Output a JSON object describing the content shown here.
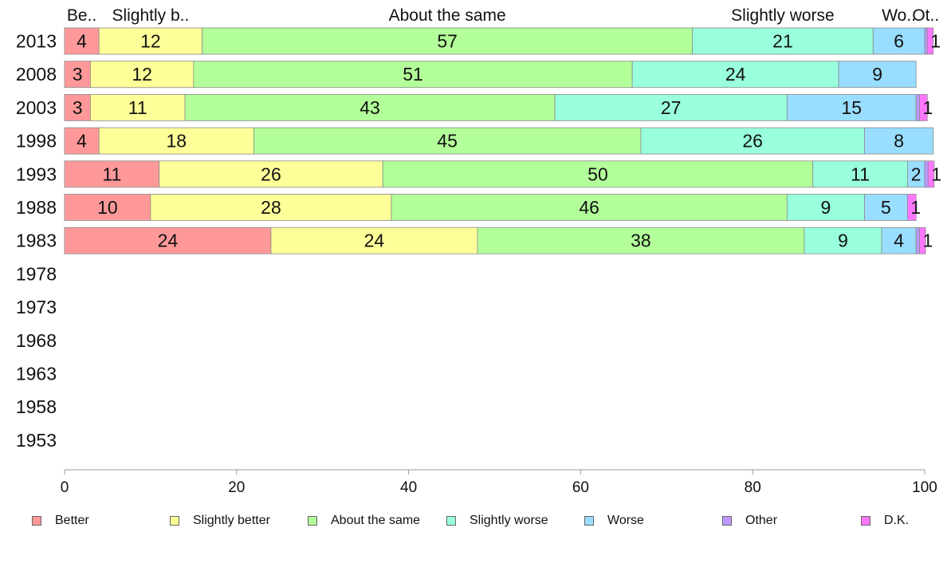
{
  "chart_data": {
    "type": "bar",
    "orientation": "horizontal",
    "stacked": true,
    "categories": [
      "2013",
      "2008",
      "2003",
      "1998",
      "1993",
      "1988",
      "1983",
      "1978",
      "1973",
      "1968",
      "1963",
      "1958",
      "1953"
    ],
    "series": [
      {
        "name": "Better",
        "color": "#ff9999",
        "values": [
          4,
          3,
          3,
          4,
          11,
          10,
          24,
          null,
          null,
          null,
          null,
          null,
          null
        ],
        "value_labels": [
          "4",
          "3",
          "3",
          "4",
          "11",
          "10",
          "24",
          "",
          "",
          "",
          "",
          "",
          ""
        ]
      },
      {
        "name": "Slightly better",
        "color": "#ffff99",
        "values": [
          12,
          12,
          11,
          18,
          26,
          28,
          24,
          null,
          null,
          null,
          null,
          null,
          null
        ],
        "value_labels": [
          "12",
          "12",
          "11",
          "18",
          "26",
          "28",
          "24",
          "",
          "",
          "",
          "",
          "",
          ""
        ]
      },
      {
        "name": "About the same",
        "color": "#b3ff99",
        "values": [
          57,
          51,
          43,
          45,
          50,
          46,
          38,
          null,
          null,
          null,
          null,
          null,
          null
        ],
        "value_labels": [
          "57",
          "51",
          "43",
          "45",
          "50",
          "46",
          "38",
          "",
          "",
          "",
          "",
          "",
          ""
        ]
      },
      {
        "name": "Slightly worse",
        "color": "#99ffdd",
        "values": [
          21,
          24,
          27,
          26,
          11,
          9,
          9,
          null,
          null,
          null,
          null,
          null,
          null
        ],
        "value_labels": [
          "21",
          "24",
          "27",
          "26",
          "11",
          "9",
          "9",
          "",
          "",
          "",
          "",
          "",
          ""
        ]
      },
      {
        "name": "Worse",
        "color": "#99ddff",
        "values": [
          6,
          9,
          15,
          8,
          2,
          5,
          4,
          null,
          null,
          null,
          null,
          null,
          null
        ],
        "value_labels": [
          "6",
          "9",
          "15",
          "8",
          "2",
          "5",
          "4",
          "",
          "",
          "",
          "",
          "",
          ""
        ]
      },
      {
        "name": "Other",
        "color": "#bb99ff",
        "values": [
          0.3,
          0,
          0.4,
          0,
          0.4,
          0,
          0.4,
          null,
          null,
          null,
          null,
          null,
          null
        ],
        "value_labels": [
          "",
          "",
          "",
          "",
          "",
          "",
          "",
          "",
          "",
          "",
          "",
          "",
          ""
        ]
      },
      {
        "name": "D.K.",
        "color": "#ff77ff",
        "values": [
          0.7,
          0,
          0.9,
          0,
          0.7,
          1,
          0.7,
          null,
          null,
          null,
          null,
          null,
          null
        ],
        "value_labels": [
          "1",
          "",
          "1",
          "",
          "1",
          "1",
          "1",
          "",
          "",
          "",
          "",
          "",
          ""
        ]
      }
    ],
    "top_labels": [
      "Be..",
      "Slightly b..",
      "About the same",
      "Slightly worse",
      "Wo..",
      "Ot..",
      ""
    ],
    "xlim": [
      0,
      100
    ],
    "x_ticks": [
      0,
      20,
      40,
      60,
      80,
      100
    ],
    "xlabel": "",
    "ylabel": "",
    "title": "",
    "grid": false,
    "legend": "bottom"
  }
}
